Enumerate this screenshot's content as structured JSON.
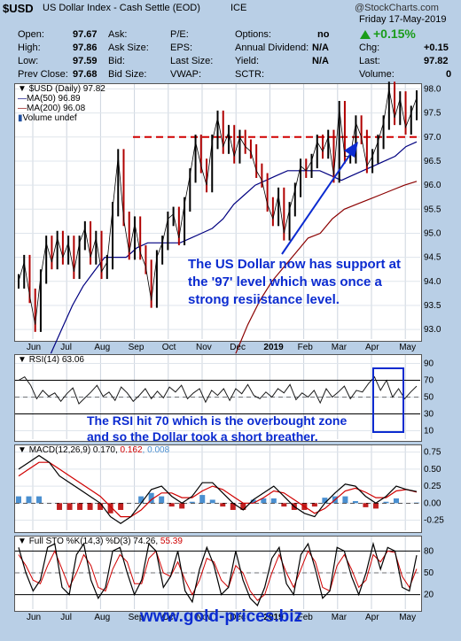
{
  "header": {
    "symbol": "$USD",
    "name": "US Dollar Index - Cash Settle (EOD)",
    "exchange": "ICE",
    "brand": "@StockCharts.com",
    "date": "Friday  17-May-2019",
    "open_label": "Open:",
    "open": "97.67",
    "high_label": "High:",
    "high": "97.86",
    "low_label": "Low:",
    "low": "97.59",
    "prev_label": "Prev Close:",
    "prev": "97.68",
    "ask_label": "Ask:",
    "ask_size_label": "Ask Size:",
    "bid_label": "Bid:",
    "bid_size_label": "Bid Size:",
    "pe_label": "P/E:",
    "eps_label": "EPS:",
    "last_size_label": "Last Size:",
    "vwap_label": "VWAP:",
    "options_label": "Options:",
    "options": "no",
    "div_label": "Annual Dividend:",
    "div": "N/A",
    "yield_label": "Yield:",
    "yield": "N/A",
    "sctr_label": "SCTR:",
    "change_pct": "+0.15%",
    "chg_label": "Chg:",
    "chg": "+0.15",
    "last_label": "Last:",
    "last": "97.82",
    "volume_label": "Volume:",
    "volume": "0",
    "up_color": "#1a9c1a"
  },
  "chart_data": [
    {
      "type": "line",
      "title": "$USD (Daily) 97.82",
      "legend": [
        "$USD (Daily) 97.82",
        "MA(50) 96.89",
        "MA(200) 96.08",
        "Volume undef"
      ],
      "x_ticks": [
        "Jun",
        "Jul",
        "Aug",
        "Sep",
        "Oct",
        "Nov",
        "Dec",
        "2019",
        "Feb",
        "Mar",
        "Apr",
        "May"
      ],
      "y_ticks": [
        93.0,
        93.5,
        94.0,
        94.5,
        95.0,
        95.5,
        96.0,
        96.5,
        97.0,
        97.5,
        98.0
      ],
      "ylim": [
        92.8,
        98.1
      ],
      "series": [
        {
          "name": "$USD (Daily) 97.82",
          "color": "#000000",
          "values": [
            94.0,
            94.4,
            93.7,
            93.1,
            94.1,
            94.8,
            94.4,
            94.9,
            94.5,
            94.8,
            94.2,
            94.8,
            95.1,
            94.5,
            94.9,
            94.2,
            94.4,
            95.5,
            96.6,
            95.3,
            94.6,
            95.2,
            94.6,
            94.3,
            93.6,
            94.5,
            94.8,
            95.3,
            95.4,
            94.9,
            95.6,
            96.2,
            96.9,
            96.4,
            96.0,
            96.9,
            97.4,
            96.8,
            97.1,
            96.6,
            97.0,
            96.8,
            96.7,
            96.3,
            96.1,
            95.6,
            95.3,
            95.8,
            95.0,
            95.5,
            95.9,
            96.4,
            96.3,
            96.5,
            96.9,
            96.7,
            97.0,
            96.2,
            97.6,
            96.6,
            96.6,
            97.3,
            97.0,
            96.4,
            96.6,
            96.9,
            97.3,
            98.0,
            97.4,
            97.8,
            97.2,
            97.5,
            97.82
          ]
        },
        {
          "name": "MA(50) 96.89",
          "color": "#000080",
          "values": [
            null,
            null,
            null,
            92.5,
            93.0,
            93.5,
            93.9,
            94.2,
            94.5,
            94.5,
            94.5,
            94.7,
            94.8,
            94.8,
            94.8,
            94.8,
            94.9,
            95.0,
            95.1,
            95.3,
            95.6,
            95.8,
            96.0,
            96.1,
            96.2,
            96.3,
            96.3,
            96.3,
            96.3,
            96.2,
            96.1,
            96.2,
            96.3,
            96.4,
            96.5,
            96.6,
            96.8,
            96.9
          ]
        },
        {
          "name": "MA(200) 96.08",
          "color": "#8b0000",
          "values": [
            null,
            null,
            null,
            null,
            null,
            null,
            null,
            null,
            null,
            null,
            null,
            null,
            null,
            null,
            null,
            null,
            null,
            null,
            92.5,
            93.1,
            93.6,
            94.0,
            94.3,
            94.6,
            94.9,
            95.0,
            95.3,
            95.5,
            95.6,
            95.7,
            95.8,
            95.9,
            96.0,
            96.08
          ]
        }
      ],
      "annotations": [
        {
          "text": "The US Dollar now has support at",
          "color": "#0b2bd0"
        },
        {
          "text": "the '97' level which was once a",
          "color": "#0b2bd0"
        },
        {
          "text": "strong resiistance level.",
          "color": "#0b2bd0"
        }
      ],
      "reference_line": {
        "value": 97.0,
        "color": "#d00000",
        "style": "dashed"
      }
    },
    {
      "type": "line",
      "title": "RSI(14) 63.06",
      "y_ticks": [
        10,
        30,
        50,
        70,
        90
      ],
      "ylim": [
        0,
        100
      ],
      "series": [
        {
          "name": "RSI(14) 63.06",
          "color": "#000000",
          "values": [
            70,
            74,
            64,
            48,
            58,
            51,
            55,
            45,
            54,
            61,
            42,
            49,
            56,
            64,
            51,
            56,
            46,
            62,
            55,
            45,
            52,
            60,
            48,
            57,
            49,
            62,
            56,
            64,
            48,
            55,
            60,
            44,
            58,
            52,
            60,
            46,
            60,
            54,
            65,
            52,
            48,
            56,
            50,
            60,
            55,
            65,
            47,
            55,
            50,
            58,
            43,
            60,
            50,
            56,
            63,
            48,
            58,
            56,
            66,
            74,
            58,
            70,
            50,
            60,
            48,
            56,
            63
          ]
        }
      ],
      "annotations": [
        {
          "text": "The RSI hit 70 which is the overbought zone",
          "color": "#0b2bd0"
        },
        {
          "text": "and so the Dollar took a short breather.",
          "color": "#0b2bd0"
        }
      ]
    },
    {
      "type": "line",
      "title": "MACD(12,26,9) 0.170, 0.162, 0.008",
      "y_ticks": [
        -0.25,
        0.0,
        0.25,
        0.5,
        0.75
      ],
      "ylim": [
        -0.4,
        0.85
      ],
      "series": [
        {
          "name": "MACD 0.170",
          "color": "#000000",
          "values": [
            0.5,
            0.6,
            0.7,
            0.6,
            0.4,
            0.3,
            0.2,
            0.1,
            0.0,
            -0.2,
            -0.3,
            -0.2,
            0.0,
            0.2,
            0.25,
            0.1,
            0.0,
            0.1,
            0.3,
            0.3,
            0.15,
            0.0,
            -0.1,
            0.05,
            0.15,
            0.25,
            0.1,
            -0.05,
            -0.15,
            -0.2,
            0.0,
            0.15,
            0.28,
            0.25,
            0.1,
            0.0,
            0.1,
            0.25,
            0.2,
            0.17
          ]
        },
        {
          "name": "Signal 0.162",
          "color": "#d00000",
          "values": [
            0.4,
            0.5,
            0.6,
            0.6,
            0.5,
            0.4,
            0.3,
            0.2,
            0.1,
            -0.05,
            -0.2,
            -0.2,
            -0.1,
            0.05,
            0.15,
            0.15,
            0.08,
            0.08,
            0.18,
            0.25,
            0.2,
            0.1,
            0.0,
            0.0,
            0.08,
            0.18,
            0.15,
            0.05,
            -0.05,
            -0.15,
            -0.08,
            0.05,
            0.18,
            0.22,
            0.16,
            0.08,
            0.08,
            0.18,
            0.2,
            0.162
          ]
        },
        {
          "name": "Histogram 0.008",
          "color": "#4a8fd0",
          "values": [
            0.1,
            0.1,
            0.1,
            0.0,
            -0.1,
            -0.1,
            -0.1,
            -0.1,
            -0.1,
            -0.15,
            -0.1,
            0.0,
            0.1,
            0.15,
            0.1,
            -0.05,
            -0.08,
            0.02,
            0.12,
            0.05,
            -0.05,
            -0.1,
            -0.1,
            0.05,
            0.07,
            0.07,
            -0.05,
            -0.1,
            -0.1,
            -0.05,
            0.08,
            0.1,
            0.1,
            0.03,
            -0.06,
            -0.08,
            0.02,
            0.07,
            0.0,
            0.008
          ]
        }
      ]
    },
    {
      "type": "line",
      "title": "Full STO %K(14,3) %D(3) 74.26, 55.39",
      "y_ticks": [
        20,
        50,
        80
      ],
      "ylim": [
        0,
        100
      ],
      "series": [
        {
          "name": "%K 74.26",
          "color": "#000000",
          "values": [
            85,
            50,
            25,
            40,
            85,
            90,
            30,
            20,
            75,
            90,
            40,
            15,
            30,
            80,
            85,
            50,
            20,
            40,
            90,
            80,
            30,
            45,
            80,
            25,
            10,
            55,
            85,
            60,
            20,
            30,
            80,
            40,
            15,
            5,
            30,
            70,
            85,
            35,
            20,
            75,
            90,
            55,
            15,
            25,
            85,
            80,
            45,
            20,
            50,
            90,
            55,
            85,
            80,
            30,
            25,
            74.26
          ]
        },
        {
          "name": "%D 55.39",
          "color": "#d00000",
          "values": [
            75,
            60,
            40,
            35,
            60,
            80,
            55,
            30,
            50,
            75,
            60,
            30,
            25,
            55,
            75,
            65,
            35,
            35,
            70,
            80,
            50,
            45,
            65,
            40,
            20,
            40,
            70,
            65,
            40,
            30,
            60,
            50,
            25,
            12,
            20,
            50,
            75,
            50,
            30,
            55,
            80,
            65,
            30,
            25,
            60,
            75,
            55,
            30,
            40,
            75,
            65,
            80,
            78,
            45,
            30,
            55.39
          ]
        }
      ]
    }
  ],
  "labels": {
    "legend_price": "$USD (Daily) 97.82",
    "legend_ma50": "MA(50) 96.89",
    "legend_ma200": "MA(200) 96.08",
    "legend_vol": "Volume undef",
    "rsi_label": "RSI(14) 63.06",
    "macd_label_a": "MACD(12,26,9) 0.170, ",
    "macd_label_b": "0.162",
    "macd_label_c": ", 0.008",
    "sto_label_a": "Full STO %K(14,3) %D(3) 74.26, ",
    "sto_label_b": "55.39",
    "watermark": "www.gold-prices.biz"
  }
}
